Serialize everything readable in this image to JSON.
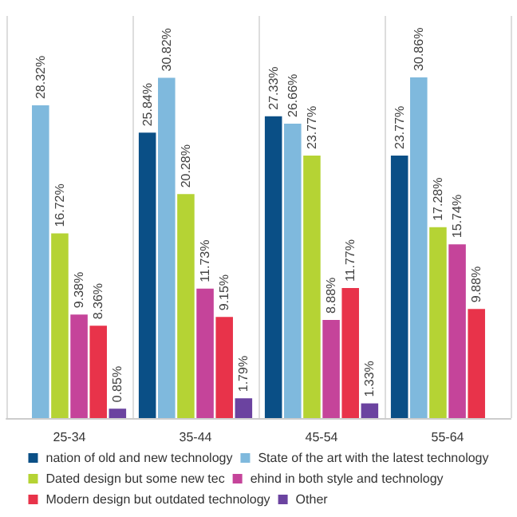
{
  "chart_data": {
    "type": "bar",
    "categories": [
      "25-34",
      "35-44",
      "45-54",
      "55-64"
    ],
    "series": [
      {
        "name": "nation of old and new technology",
        "color": "#0a4f86",
        "values": [
          null,
          25.84,
          27.33,
          23.77
        ],
        "value_labels": [
          null,
          "25.84%",
          "27.33%",
          "23.77%"
        ]
      },
      {
        "name": "State of the art with the latest technology",
        "color": "#7fb9dd",
        "values": [
          28.32,
          30.82,
          26.66,
          30.86
        ],
        "value_labels": [
          "28.32%",
          "30.82%",
          "26.66%",
          "30.86%"
        ]
      },
      {
        "name": "Dated design but some new tec",
        "color": "#b5d334",
        "values": [
          16.72,
          20.28,
          23.77,
          17.28
        ],
        "value_labels": [
          "16.72%",
          "20.28%",
          "23.77%",
          "17.28%"
        ]
      },
      {
        "name": "ehind in both style and technology",
        "color": "#c5449a",
        "values": [
          9.38,
          11.73,
          8.88,
          15.74
        ],
        "value_labels": [
          "9.38%",
          "11.73%",
          "8.88%",
          "15.74%"
        ]
      },
      {
        "name": "Modern design but outdated technology",
        "color": "#e8334a",
        "values": [
          8.36,
          9.15,
          11.77,
          9.88
        ],
        "value_labels": [
          "8.36%",
          "9.15%",
          "11.77%",
          "9.88%"
        ]
      },
      {
        "name": "Other",
        "color": "#6b43a0",
        "values": [
          0.85,
          1.79,
          1.33,
          null
        ],
        "value_labels": [
          "0.85%",
          "1.79%",
          "1.33%",
          null
        ]
      }
    ],
    "legend": "bottom"
  }
}
